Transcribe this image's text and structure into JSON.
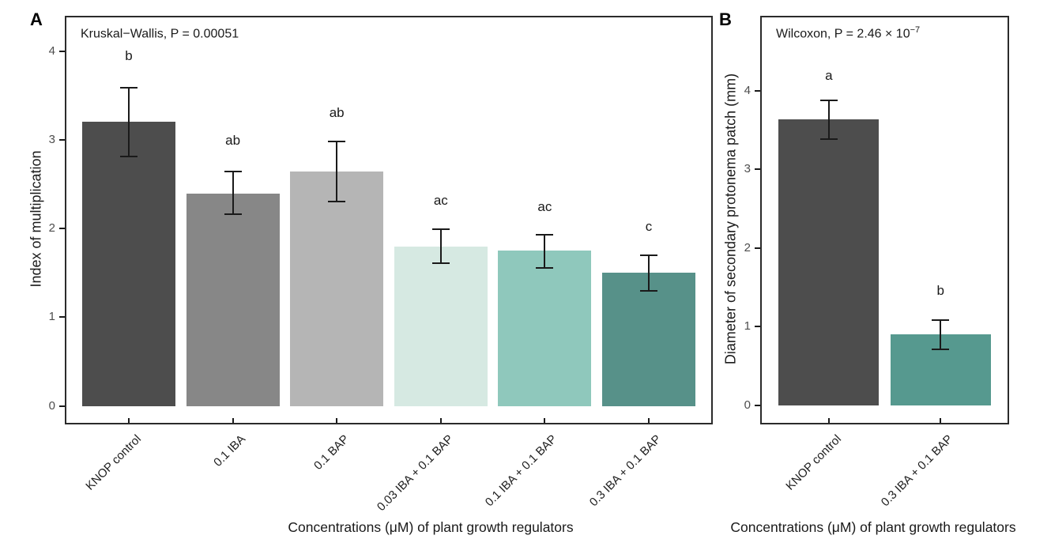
{
  "figure": {
    "x_axis_title": "Concentrations (μM) of plant growth regulators"
  },
  "chart_data": [
    {
      "type": "bar",
      "panel_label": "A",
      "annotation": "Kruskal−Wallis, P = 0.00051",
      "annotation_sup": "",
      "ylabel": "Index of multiplication",
      "xlabel": "Concentrations (μM) of plant growth regulators",
      "yticks": [
        0,
        1,
        2,
        3,
        4
      ],
      "ylim": [
        -0.19,
        4.38
      ],
      "grid": false,
      "legend": "none",
      "categories": [
        "KNOP control",
        "0.1 IBA",
        "0.1 BAP",
        "0.03 IBA + 0.1 BAP",
        "0.1 IBA + 0.1 BAP",
        "0.3 IBA + 0.1 BAP"
      ],
      "values": [
        3.2,
        2.39,
        2.64,
        1.8,
        1.75,
        1.5
      ],
      "error_low": [
        2.81,
        2.16,
        2.3,
        1.61,
        1.56,
        1.3
      ],
      "error_high": [
        3.59,
        2.64,
        2.98,
        1.99,
        1.93,
        1.7
      ],
      "sig_letters": [
        "b",
        "ab",
        "ab",
        "ac",
        "ac",
        "c"
      ],
      "sig_letter_y": [
        3.94,
        2.99,
        3.3,
        2.31,
        2.24,
        2.02
      ],
      "bar_colors": [
        "#4d4d4d",
        "#878787",
        "#b5b5b5",
        "#d6e9e2",
        "#8fc8bc",
        "#579189"
      ]
    },
    {
      "type": "bar",
      "panel_label": "B",
      "annotation": "Wilcoxon, P = 2.46 × 10",
      "annotation_sup": "−7",
      "ylabel": "Diameter of secondary protonema patch (mm)",
      "xlabel": "Concentrations (μM) of plant growth regulators",
      "yticks": [
        0,
        1,
        2,
        3,
        4
      ],
      "ylim": [
        -0.22,
        4.93
      ],
      "grid": false,
      "legend": "none",
      "categories": [
        "KNOP control",
        "0.3 IBA + 0.1 BAP"
      ],
      "values": [
        3.63,
        0.9
      ],
      "error_low": [
        3.38,
        0.71
      ],
      "error_high": [
        3.88,
        1.09
      ],
      "sig_letters": [
        "a",
        "b"
      ],
      "sig_letter_y": [
        4.19,
        1.46
      ],
      "bar_colors": [
        "#4d4d4d",
        "#56998f"
      ]
    }
  ]
}
